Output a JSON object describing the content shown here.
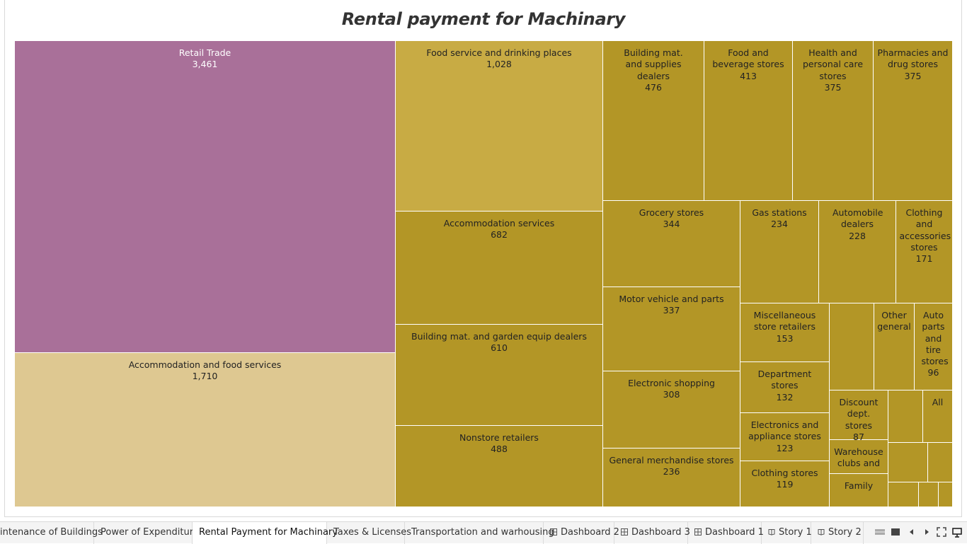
{
  "title": "Rental payment for Machinary",
  "colors": {
    "retail": "#a97099",
    "accommodation_parent": "#dec891",
    "food_service": "#c8ab44",
    "gold": "#b39626"
  },
  "tabs": [
    {
      "label": "intenance of Buildings",
      "icon": "none",
      "active": false
    },
    {
      "label": "Power  of Expenditure",
      "icon": "none",
      "active": false
    },
    {
      "label": "Rental Payment for Machinary",
      "icon": "none",
      "active": true
    },
    {
      "label": "Taxes & Licenses",
      "icon": "none",
      "active": false
    },
    {
      "label": "Transportation and warhousing",
      "icon": "none",
      "active": false
    },
    {
      "label": "Dashboard 2",
      "icon": "dashboard-icon",
      "active": false
    },
    {
      "label": "Dashboard 3",
      "icon": "dashboard-icon",
      "active": false
    },
    {
      "label": "Dashboard 1",
      "icon": "dashboard-icon",
      "active": false
    },
    {
      "label": "Story 1",
      "icon": "story-icon",
      "active": false
    },
    {
      "label": "Story 2",
      "icon": "story-icon",
      "active": false
    }
  ],
  "chart_data": {
    "type": "treemap",
    "title": "Rental payment for Machinary",
    "items": [
      {
        "label": "Retail Trade",
        "value": "3,461",
        "color": "#a97099"
      },
      {
        "label": "Accommodation and food services",
        "value": "1,710",
        "color": "#dec891"
      },
      {
        "label": "Food service and drinking places",
        "value": "1,028",
        "color": "#c8ab44"
      },
      {
        "label": "Accommodation services",
        "value": "682",
        "color": "#b39626"
      },
      {
        "label": "Building mat. and garden equip dealers",
        "value": "610",
        "color": "#b39626"
      },
      {
        "label": "Nonstore retailers",
        "value": "488",
        "color": "#b39626"
      },
      {
        "label": "Building mat. and supplies dealers",
        "value": "476",
        "color": "#b39626"
      },
      {
        "label": "Food and beverage stores",
        "value": "413",
        "color": "#b39626"
      },
      {
        "label": "Health and personal care stores",
        "value": "375",
        "color": "#b39626"
      },
      {
        "label": "Pharmacies and drug stores",
        "value": "375",
        "color": "#b39626"
      },
      {
        "label": "Grocery stores",
        "value": "344",
        "color": "#b39626"
      },
      {
        "label": "Gas stations",
        "value": "234",
        "color": "#b39626"
      },
      {
        "label": "Automobile dealers",
        "value": "228",
        "color": "#b39626"
      },
      {
        "label": "Clothing and accessories stores",
        "value": "171",
        "color": "#b39626"
      },
      {
        "label": "Motor vehicle and parts",
        "value": "337",
        "color": "#b39626"
      },
      {
        "label": "Electronic shopping",
        "value": "308",
        "color": "#b39626"
      },
      {
        "label": "General merchandise stores",
        "value": "236",
        "color": "#b39626"
      },
      {
        "label": "Miscellaneous store retailers",
        "value": "153",
        "color": "#b39626"
      },
      {
        "label": "Department stores",
        "value": "132",
        "color": "#b39626"
      },
      {
        "label": "Electronics and appliance stores",
        "value": "123",
        "color": "#b39626"
      },
      {
        "label": "Clothing stores",
        "value": "119",
        "color": "#b39626"
      },
      {
        "label": "Other general",
        "value": "",
        "color": "#b39626"
      },
      {
        "label": "Auto parts and tire stores",
        "value": "96",
        "color": "#b39626"
      },
      {
        "label": "Discount dept. stores",
        "value": "87",
        "color": "#b39626"
      },
      {
        "label": "All",
        "value": "",
        "color": "#b39626"
      },
      {
        "label": "Warehouse clubs and",
        "value": "",
        "color": "#b39626"
      },
      {
        "label": "Family",
        "value": "",
        "color": "#b39626"
      },
      {
        "label": "",
        "value": "",
        "color": "#b39626"
      },
      {
        "label": "",
        "value": "",
        "color": "#b39626"
      },
      {
        "label": "",
        "value": "",
        "color": "#b39626"
      },
      {
        "label": "",
        "value": "",
        "color": "#b39626"
      },
      {
        "label": "",
        "value": "",
        "color": "#b39626"
      },
      {
        "label": "",
        "value": "",
        "color": "#b39626"
      },
      {
        "label": "",
        "value": "",
        "color": "#b39626"
      }
    ]
  }
}
